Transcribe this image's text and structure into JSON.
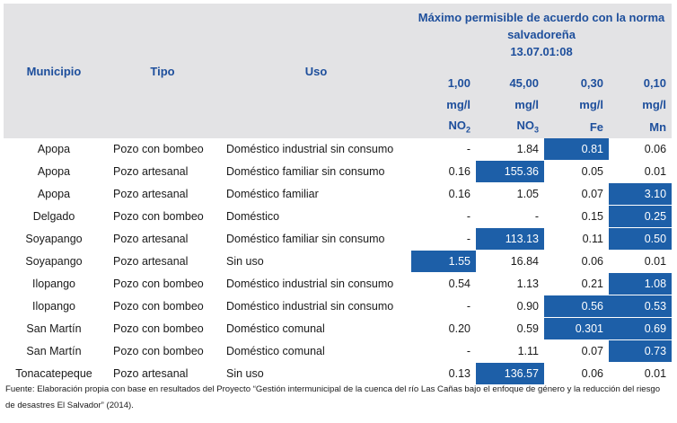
{
  "header": {
    "municipio": "Municipio",
    "tipo": "Tipo",
    "uso": "Uso",
    "norma_line1": "Máximo permisible de acuerdo con la norma",
    "norma_line2": "salvadoreña",
    "norma_line3": "13.07.01:08",
    "columns": [
      {
        "value": "1,00",
        "unit": "mg/l",
        "element": "NO",
        "sub": "2"
      },
      {
        "value": "45,00",
        "unit": "mg/l",
        "element": "NO",
        "sub": "3"
      },
      {
        "value": "0,30",
        "unit": "mg/l",
        "element": "Fe",
        "sub": ""
      },
      {
        "value": "0,10",
        "unit": "mg/l",
        "element": "Mn",
        "sub": ""
      }
    ]
  },
  "highlight_color": "#1d5fa8",
  "rows": [
    {
      "municipio": "Apopa",
      "tipo": "Pozo con bombeo",
      "uso": "Doméstico industrial sin consumo",
      "no2": "-",
      "no3": "1.84",
      "fe": "0.81",
      "mn": "0.06",
      "hl": [
        false,
        false,
        true,
        false
      ]
    },
    {
      "municipio": "Apopa",
      "tipo": "Pozo   artesanal",
      "uso": "Doméstico familiar sin consumo",
      "no2": "0.16",
      "no3": "155.36",
      "fe": "0.05",
      "mn": "0.01",
      "hl": [
        false,
        true,
        false,
        false
      ]
    },
    {
      "municipio": "Apopa",
      "tipo": "Pozo   artesanal",
      "uso": "Doméstico familiar",
      "no2": "0.16",
      "no3": "1.05",
      "fe": "0.07",
      "mn": "3.10",
      "hl": [
        false,
        false,
        false,
        true
      ]
    },
    {
      "municipio": "Delgado",
      "tipo": "Pozo con bombeo",
      "uso": "Doméstico",
      "no2": "-",
      "no3": "-",
      "fe": "0.15",
      "mn": "0.25",
      "hl": [
        false,
        false,
        false,
        true
      ]
    },
    {
      "municipio": "Soyapango",
      "tipo": "Pozo   artesanal",
      "uso": "Doméstico familiar sin consumo",
      "no2": "-",
      "no3": "113.13",
      "fe": "0.11",
      "mn": "0.50",
      "hl": [
        false,
        true,
        false,
        true
      ]
    },
    {
      "municipio": "Soyapango",
      "tipo": "Pozo   artesanal",
      "uso": "Sin uso",
      "no2": "1.55",
      "no3": "16.84",
      "fe": "0.06",
      "mn": "0.01",
      "hl": [
        true,
        false,
        false,
        false
      ]
    },
    {
      "municipio": "Ilopango",
      "tipo": "Pozo con bombeo",
      "uso": "Doméstico industrial sin consumo",
      "no2": "0.54",
      "no3": "1.13",
      "fe": "0.21",
      "mn": "1.08",
      "hl": [
        false,
        false,
        false,
        true
      ]
    },
    {
      "municipio": "Ilopango",
      "tipo": "Pozo con bombeo",
      "uso": "Doméstico industrial sin consumo",
      "no2": "-",
      "no3": "0.90",
      "fe": "0.56",
      "mn": "0.53",
      "hl": [
        false,
        false,
        true,
        true
      ]
    },
    {
      "municipio": "San Martín",
      "tipo": "Pozo con bombeo",
      "uso": "Doméstico comunal",
      "no2": "0.20",
      "no3": "0.59",
      "fe": "0.301",
      "mn": "0.69",
      "hl": [
        false,
        false,
        true,
        true
      ]
    },
    {
      "municipio": "San Martín",
      "tipo": "Pozo con bombeo",
      "uso": "Doméstico comunal",
      "no2": "-",
      "no3": "1.11",
      "fe": "0.07",
      "mn": "0.73",
      "hl": [
        false,
        false,
        false,
        true
      ]
    },
    {
      "municipio": "Tonacatepeque",
      "tipo": "Pozo   artesanal",
      "uso": "Sin uso",
      "no2": "0.13",
      "no3": "136.57",
      "fe": "0.06",
      "mn": "0.01",
      "hl": [
        false,
        true,
        false,
        false
      ]
    }
  ],
  "source": "Fuente: Elaboración propia con base en resultados del Proyecto “Gestión intermunicipal de la cuenca del río Las Cañas bajo el enfoque de género y la reducción del riesgo de desastres El Salvador” (2014)."
}
